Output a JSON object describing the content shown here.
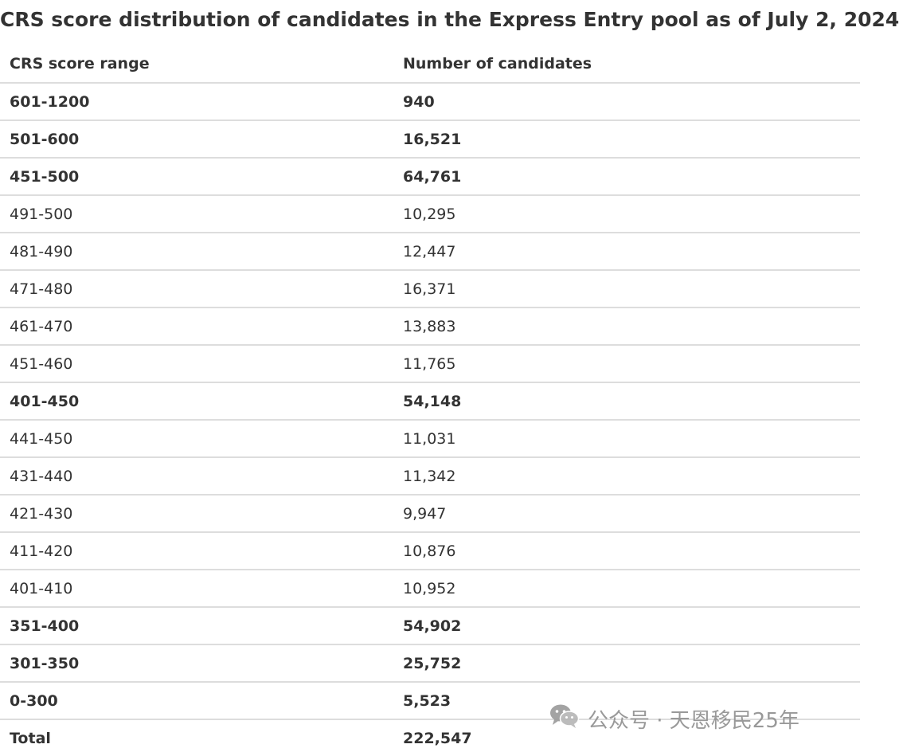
{
  "title": "CRS score distribution of candidates in the Express Entry pool as of July 2, 2024",
  "table": {
    "headers": [
      "CRS score range",
      "Number of candidates"
    ],
    "rows": [
      {
        "range": "601-1200",
        "count": "940",
        "bold": true
      },
      {
        "range": "501-600",
        "count": "16,521",
        "bold": true
      },
      {
        "range": "451-500",
        "count": "64,761",
        "bold": true
      },
      {
        "range": "491-500",
        "count": "10,295",
        "bold": false
      },
      {
        "range": "481-490",
        "count": "12,447",
        "bold": false
      },
      {
        "range": "471-480",
        "count": "16,371",
        "bold": false
      },
      {
        "range": "461-470",
        "count": "13,883",
        "bold": false
      },
      {
        "range": "451-460",
        "count": "11,765",
        "bold": false
      },
      {
        "range": "401-450",
        "count": "54,148",
        "bold": true
      },
      {
        "range": "441-450",
        "count": "11,031",
        "bold": false
      },
      {
        "range": "431-440",
        "count": "11,342",
        "bold": false
      },
      {
        "range": "421-430",
        "count": "9,947",
        "bold": false
      },
      {
        "range": "411-420",
        "count": "10,876",
        "bold": false
      },
      {
        "range": "401-410",
        "count": "10,952",
        "bold": false
      },
      {
        "range": "351-400",
        "count": "54,902",
        "bold": true
      },
      {
        "range": "301-350",
        "count": "25,752",
        "bold": true
      },
      {
        "range": "0-300",
        "count": "5,523",
        "bold": true
      },
      {
        "range": "Total",
        "count": "222,547",
        "bold": true
      }
    ]
  },
  "watermark": {
    "icon": "wechat-icon",
    "text": "公众号 · 天恩移民25年"
  }
}
